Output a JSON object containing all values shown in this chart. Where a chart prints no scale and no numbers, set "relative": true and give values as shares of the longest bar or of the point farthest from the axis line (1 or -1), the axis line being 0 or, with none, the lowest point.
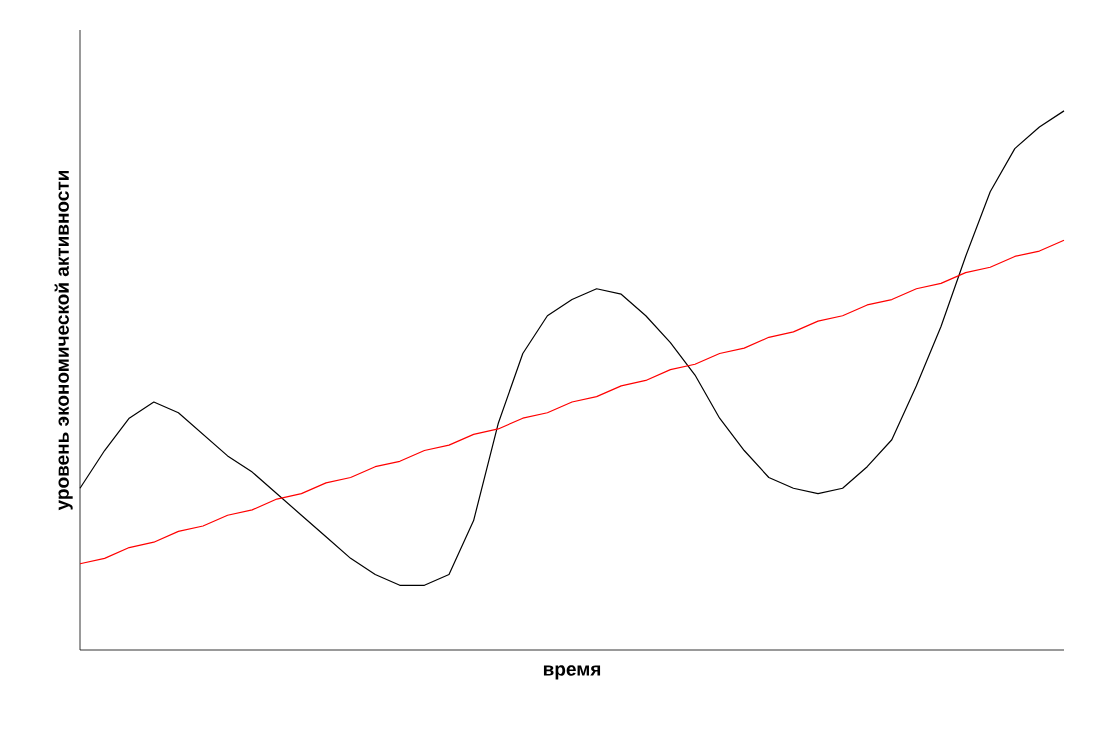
{
  "chart_data": {
    "type": "line",
    "relative": true,
    "xlabel": "время",
    "ylabel": "уровень экономической активности",
    "categories": [
      null,
      null,
      null,
      null,
      null,
      null,
      null,
      null,
      null,
      null,
      null,
      null,
      null,
      null,
      null,
      null,
      null,
      null,
      null,
      null,
      null,
      null,
      null,
      null,
      null,
      null,
      null,
      null,
      null,
      null,
      null,
      null,
      null,
      null,
      null,
      null,
      null,
      null,
      null,
      null,
      null
    ],
    "series": [
      {
        "color": "#000000",
        "values": [
          0.3,
          0.37,
          0.43,
          0.46,
          0.44,
          0.4,
          0.36,
          0.33,
          0.29,
          0.25,
          0.21,
          0.17,
          0.14,
          0.12,
          0.12,
          0.14,
          0.24,
          0.42,
          0.55,
          0.62,
          0.65,
          0.67,
          0.66,
          0.62,
          0.57,
          0.51,
          0.43,
          0.37,
          0.32,
          0.3,
          0.29,
          0.3,
          0.34,
          0.39,
          0.49,
          0.6,
          0.73,
          0.85,
          0.93,
          0.97,
          1
        ]
      },
      {
        "color": "#ff0000",
        "values": [
          0.16,
          0.17,
          0.19,
          0.2,
          0.22,
          0.23,
          0.25,
          0.26,
          0.28,
          0.29,
          0.31,
          0.32,
          0.34,
          0.35,
          0.37,
          0.38,
          0.4,
          0.41,
          0.43,
          0.44,
          0.46,
          0.47,
          0.49,
          0.5,
          0.52,
          0.53,
          0.55,
          0.56,
          0.58,
          0.59,
          0.61,
          0.62,
          0.64,
          0.65,
          0.67,
          0.68,
          0.7,
          0.71,
          0.73,
          0.74,
          0.76
        ]
      }
    ],
    "marker": "none",
    "line_style": "solid"
  }
}
